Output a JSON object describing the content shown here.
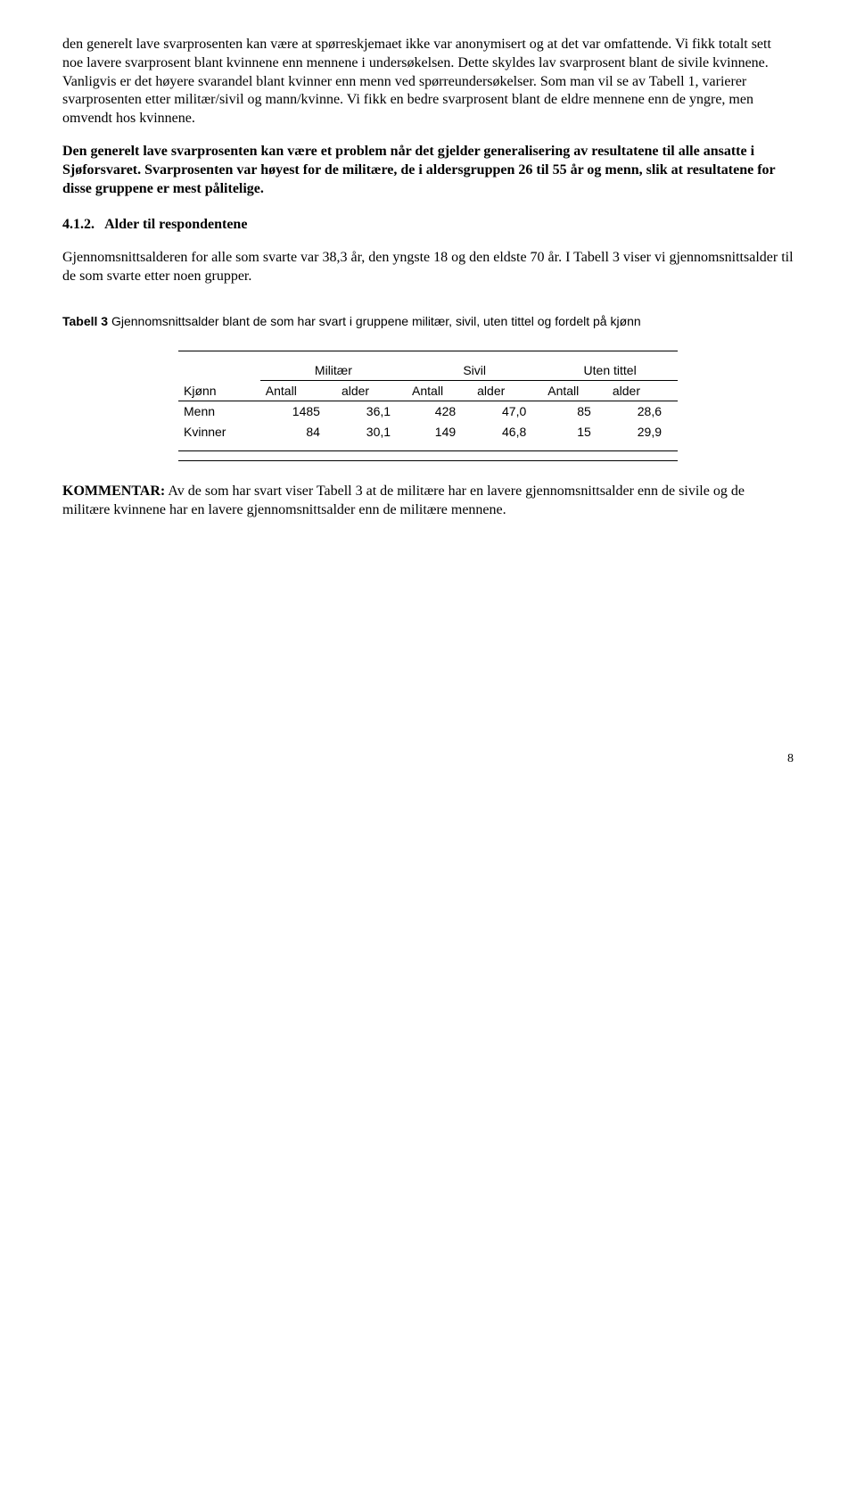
{
  "para1": "den generelt lave svarprosenten kan være at spørreskjemaet ikke var anonymisert og at det var omfattende. Vi fikk totalt sett noe lavere svarprosent blant kvinnene enn mennene i undersøkelsen. Dette skyldes lav svarprosent blant de sivile kvinnene. Vanligvis er det høyere svarandel blant kvinner enn menn ved spørreundersøkelser. Som man vil se av Tabell 1, varierer svarprosenten etter militær/sivil og mann/kvinne. Vi fikk en bedre svarprosent blant de eldre mennene enn de yngre, men omvendt hos kvinnene.",
  "para2_bold": "Den generelt lave svarprosenten kan være et problem når det gjelder generalisering av resultatene til alle ansatte i Sjøforsvaret. Svarprosenten var høyest for de militære, de i aldersgruppen 26 til 55 år og menn, slik at resultatene for disse gruppene er mest pålitelige.",
  "section_number": "4.1.2.",
  "section_title": "Alder til respondentene",
  "para3": "Gjennomsnittsalderen for alle som svarte var 38,3 år, den yngste 18 og den eldste 70 år. I Tabell 3 viser vi gjennomsnittsalder til de som svarte etter noen grupper.",
  "table_caption_bold": "Tabell 3",
  "table_caption_rest": " Gjennomsnittsalder blant de som har svart i gruppene militær, sivil, uten tittel og fordelt på kjønn",
  "table": {
    "group_headers": [
      "Militær",
      "Sivil",
      "Uten tittel"
    ],
    "row_label_header": "Kjønn",
    "col_sub_headers": [
      "Antall",
      "alder"
    ],
    "rows": [
      {
        "label": "Menn",
        "cells": [
          "1485",
          "36,1",
          "428",
          "47,0",
          "85",
          "28,6"
        ]
      },
      {
        "label": "Kvinner",
        "cells": [
          "84",
          "30,1",
          "149",
          "46,8",
          "15",
          "29,9"
        ]
      }
    ]
  },
  "kommentar_label": "KOMMENTAR:",
  "kommentar_text": " Av de som har svart viser Tabell 3 at de militære har en lavere gjennomsnittsalder enn de sivile og de militære kvinnene har en lavere gjennomsnittsalder enn de militære mennene.",
  "page_number": "8"
}
